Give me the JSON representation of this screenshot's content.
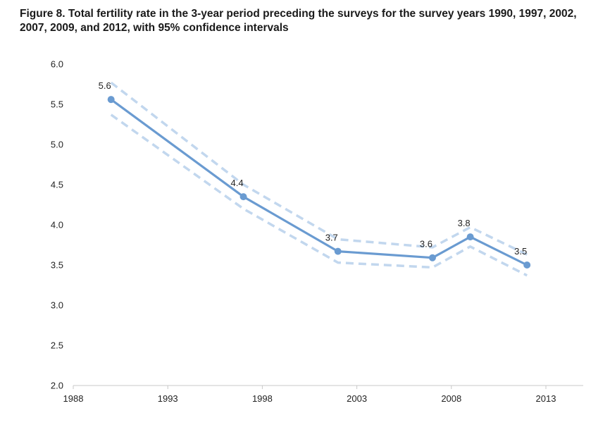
{
  "chart_data": {
    "type": "line",
    "title": "Figure 8. Total fertility rate in the 3-year period preceding the surveys for the survey years 1990, 1997, 2002, 2007, 2009, and 2012, with 95% confidence intervals",
    "xlabel": "",
    "ylabel": "",
    "xlim": [
      1988,
      2013
    ],
    "ylim": [
      2.0,
      6.0
    ],
    "x_ticks": [
      1988,
      1993,
      1998,
      2003,
      2008,
      2013
    ],
    "y_ticks": [
      2.0,
      2.5,
      3.0,
      3.5,
      4.0,
      4.5,
      5.0,
      5.5,
      6.0
    ],
    "y_tick_labels": [
      "2.0",
      "2.5",
      "3.0",
      "3.5",
      "4.0",
      "4.5",
      "5.0",
      "5.5",
      "6.0"
    ],
    "grid": false,
    "legend": "none",
    "x": [
      1990,
      1997,
      2002,
      2007,
      2009,
      2012
    ],
    "series": [
      {
        "values": [
          5.56,
          4.35,
          3.67,
          3.59,
          3.85,
          3.5
        ],
        "data_labels": [
          "5.6",
          "4.4",
          "3.7",
          "3.6",
          "3.8",
          "3.5"
        ],
        "color": "#6a9bd1",
        "style": "solid"
      },
      {
        "values": [
          5.77,
          4.5,
          3.82,
          3.72,
          3.97,
          3.63
        ],
        "color": "#c2d7ee",
        "style": "dashed"
      },
      {
        "values": [
          5.37,
          4.2,
          3.53,
          3.47,
          3.73,
          3.37
        ],
        "color": "#c2d7ee",
        "style": "dashed"
      }
    ]
  }
}
